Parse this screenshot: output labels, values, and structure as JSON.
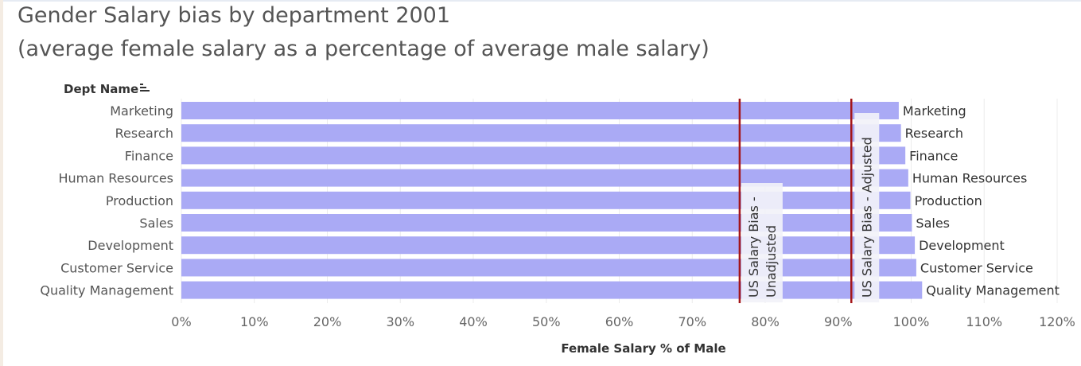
{
  "page": {
    "title_line1": "Gender Salary bias by department 2001",
    "title_line2": "(average female salary as a percentage of average male salary)"
  },
  "chart_data": {
    "type": "bar",
    "orientation": "horizontal",
    "title": "Gender Salary bias by department 2001 (average female salary as a percentage of average male salary)",
    "ylabel": "Dept Name",
    "xlabel": "Female Salary % of Male",
    "xlim": [
      0,
      120
    ],
    "x_ticks": [
      "0%",
      "10%",
      "20%",
      "30%",
      "40%",
      "50%",
      "60%",
      "70%",
      "80%",
      "90%",
      "100%",
      "110%",
      "120%"
    ],
    "grid": true,
    "sort_icon": "sort-descending-icon",
    "bar_color": "#aaaaf5",
    "categories": [
      "Marketing",
      "Research",
      "Finance",
      "Human Resources",
      "Production",
      "Sales",
      "Development",
      "Customer Service",
      "Quality Management"
    ],
    "values": [
      98.3,
      98.6,
      99.2,
      99.6,
      99.9,
      100.1,
      100.5,
      100.7,
      101.5
    ],
    "end_labels": [
      "Marketing",
      "Research",
      "Finance",
      "Human Resources",
      "Production",
      "Sales",
      "Development",
      "Customer Service",
      "Quality Management"
    ],
    "reference_lines": [
      {
        "value": 76.5,
        "label_line1": "US Salary Bias -",
        "label_line2": "Unadjusted",
        "color": "#a4161a"
      },
      {
        "value": 91.8,
        "label_line1": "US Salary Bias - Adjusted",
        "label_line2": "",
        "color": "#a4161a"
      }
    ]
  }
}
